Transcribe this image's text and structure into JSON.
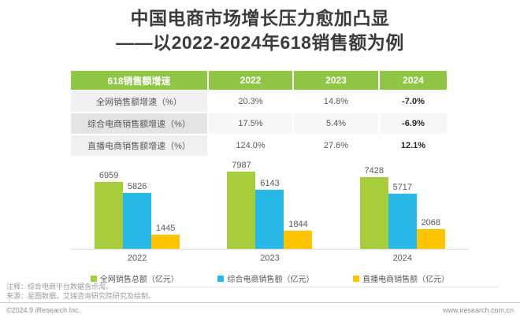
{
  "title": {
    "line1": "中国电商市场增长压力愈加凸显",
    "line2": "——以2022-2024年618销售额为例"
  },
  "colors": {
    "table_header_bg": "#8fc645",
    "series_green": "#a6ce3c",
    "series_blue": "#29b8e8",
    "series_yellow": "#ffc400"
  },
  "chart_data": [
    {
      "type": "table",
      "header": [
        "618销售额增速",
        "2022",
        "2023",
        "2024"
      ],
      "rows": [
        {
          "label": "全网销售额增速（%）",
          "values": [
            "20.3%",
            "14.8%",
            "-7.0%"
          ]
        },
        {
          "label": "综合电商销售额增速（%）",
          "values": [
            "17.5%",
            "5.4%",
            "-6.9%"
          ]
        },
        {
          "label": "直播电商销售额增速（%）",
          "values": [
            "124.0%",
            "27.6%",
            "12.1%"
          ]
        }
      ]
    },
    {
      "type": "bar",
      "categories": [
        "2022",
        "2023",
        "2024"
      ],
      "series": [
        {
          "name": "全网销售总额（亿元）",
          "color": "#a6ce3c",
          "values": [
            6959,
            7987,
            7428
          ]
        },
        {
          "name": "综合电商销售额（亿元）",
          "color": "#29b8e8",
          "values": [
            5826,
            6143,
            5717
          ]
        },
        {
          "name": "直播电商销售额（亿元）",
          "color": "#ffc400",
          "values": [
            1445,
            1844,
            2068
          ]
        }
      ],
      "title": "",
      "xlabel": "",
      "ylabel": "",
      "ylim": [
        0,
        8400
      ],
      "grid": false,
      "legend_position": "bottom",
      "value_labels": true
    }
  ],
  "notes": {
    "line1": "注释：综合电商平台数据含点淘。",
    "line2": "来源：星图数据，艾瑞咨询研究院研究及绘制。"
  },
  "footer": {
    "copyright": "©2024.9 iResearch Inc.",
    "website": "www.iresearch.com.cn"
  }
}
